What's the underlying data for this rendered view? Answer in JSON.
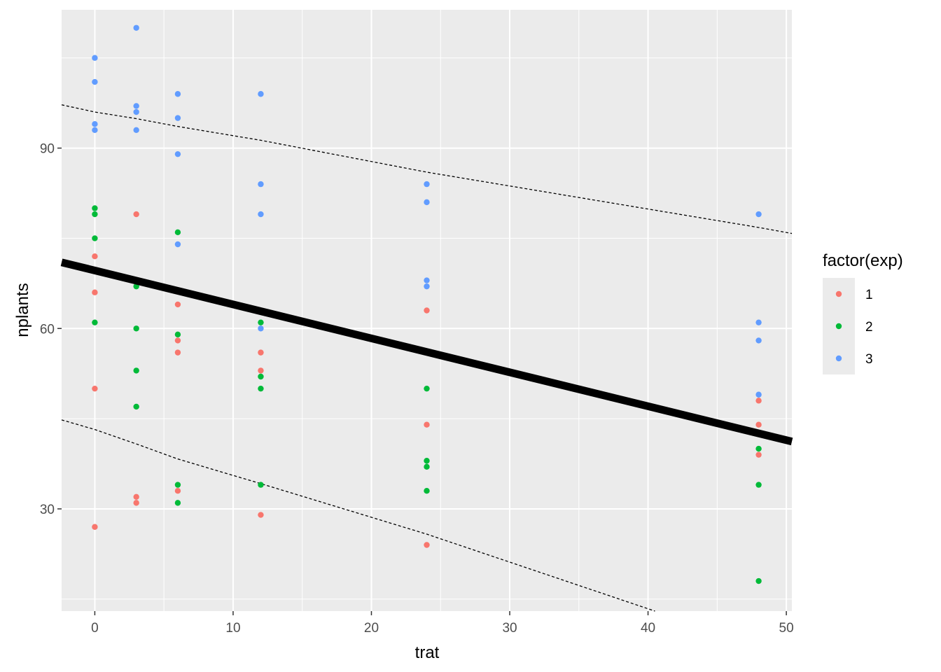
{
  "chart_data": {
    "type": "scatter",
    "xlabel": "trat",
    "ylabel": "nplants",
    "xlim": [
      -2.4,
      50.4
    ],
    "ylim": [
      13,
      113
    ],
    "x_ticks": [
      0,
      10,
      20,
      30,
      40,
      50
    ],
    "y_ticks": [
      30,
      60,
      90
    ],
    "grid": true,
    "legend": {
      "title": "factor(exp)",
      "position": "right",
      "entries": [
        "1",
        "2",
        "3"
      ]
    },
    "colors": {
      "1": "#F8766D",
      "2": "#00BA38",
      "3": "#619CFF",
      "panel_bg": "#EBEBEB",
      "grid": "#FFFFFF",
      "fit_line": "#000000"
    },
    "series": [
      {
        "name": "1",
        "points": [
          [
            0,
            72
          ],
          [
            0,
            66
          ],
          [
            0,
            50
          ],
          [
            0,
            27
          ],
          [
            3,
            79
          ],
          [
            3,
            32
          ],
          [
            3,
            31
          ],
          [
            6,
            64
          ],
          [
            6,
            58
          ],
          [
            6,
            56
          ],
          [
            6,
            33
          ],
          [
            12,
            56
          ],
          [
            12,
            53
          ],
          [
            12,
            29
          ],
          [
            24,
            63
          ],
          [
            24,
            44
          ],
          [
            24,
            24
          ],
          [
            48,
            48
          ],
          [
            48,
            44
          ],
          [
            48,
            39
          ]
        ]
      },
      {
        "name": "2",
        "points": [
          [
            0,
            80
          ],
          [
            0,
            79
          ],
          [
            0,
            75
          ],
          [
            0,
            61
          ],
          [
            3,
            67
          ],
          [
            3,
            60
          ],
          [
            3,
            53
          ],
          [
            3,
            47
          ],
          [
            6,
            76
          ],
          [
            6,
            59
          ],
          [
            6,
            34
          ],
          [
            6,
            31
          ],
          [
            12,
            61
          ],
          [
            12,
            52
          ],
          [
            12,
            50
          ],
          [
            12,
            34
          ],
          [
            24,
            50
          ],
          [
            24,
            38
          ],
          [
            24,
            37
          ],
          [
            24,
            33
          ],
          [
            48,
            40
          ],
          [
            48,
            34
          ],
          [
            48,
            18
          ]
        ]
      },
      {
        "name": "3",
        "points": [
          [
            0,
            105
          ],
          [
            0,
            101
          ],
          [
            0,
            94
          ],
          [
            0,
            93
          ],
          [
            3,
            110
          ],
          [
            3,
            97
          ],
          [
            3,
            96
          ],
          [
            3,
            93
          ],
          [
            6,
            99
          ],
          [
            6,
            95
          ],
          [
            6,
            89
          ],
          [
            6,
            74
          ],
          [
            12,
            99
          ],
          [
            12,
            84
          ],
          [
            12,
            79
          ],
          [
            12,
            60
          ],
          [
            24,
            84
          ],
          [
            24,
            81
          ],
          [
            24,
            68
          ],
          [
            24,
            67
          ],
          [
            48,
            79
          ],
          [
            48,
            61
          ],
          [
            48,
            58
          ],
          [
            48,
            49
          ]
        ]
      }
    ],
    "fit_line": {
      "x": [
        -2.4,
        50.4
      ],
      "y": [
        71.0,
        41.2
      ]
    },
    "upper_band": {
      "x": [
        -2.4,
        0,
        3,
        6,
        12,
        24,
        48,
        50.4
      ],
      "y": [
        97.2,
        96.0,
        94.9,
        93.6,
        91.3,
        86.0,
        76.8,
        75.8
      ]
    },
    "lower_band": {
      "x": [
        -2.4,
        0,
        3,
        6,
        12,
        24,
        40.5
      ],
      "y": [
        44.8,
        43.2,
        40.8,
        38.3,
        34.2,
        25.8,
        13.0
      ]
    }
  }
}
